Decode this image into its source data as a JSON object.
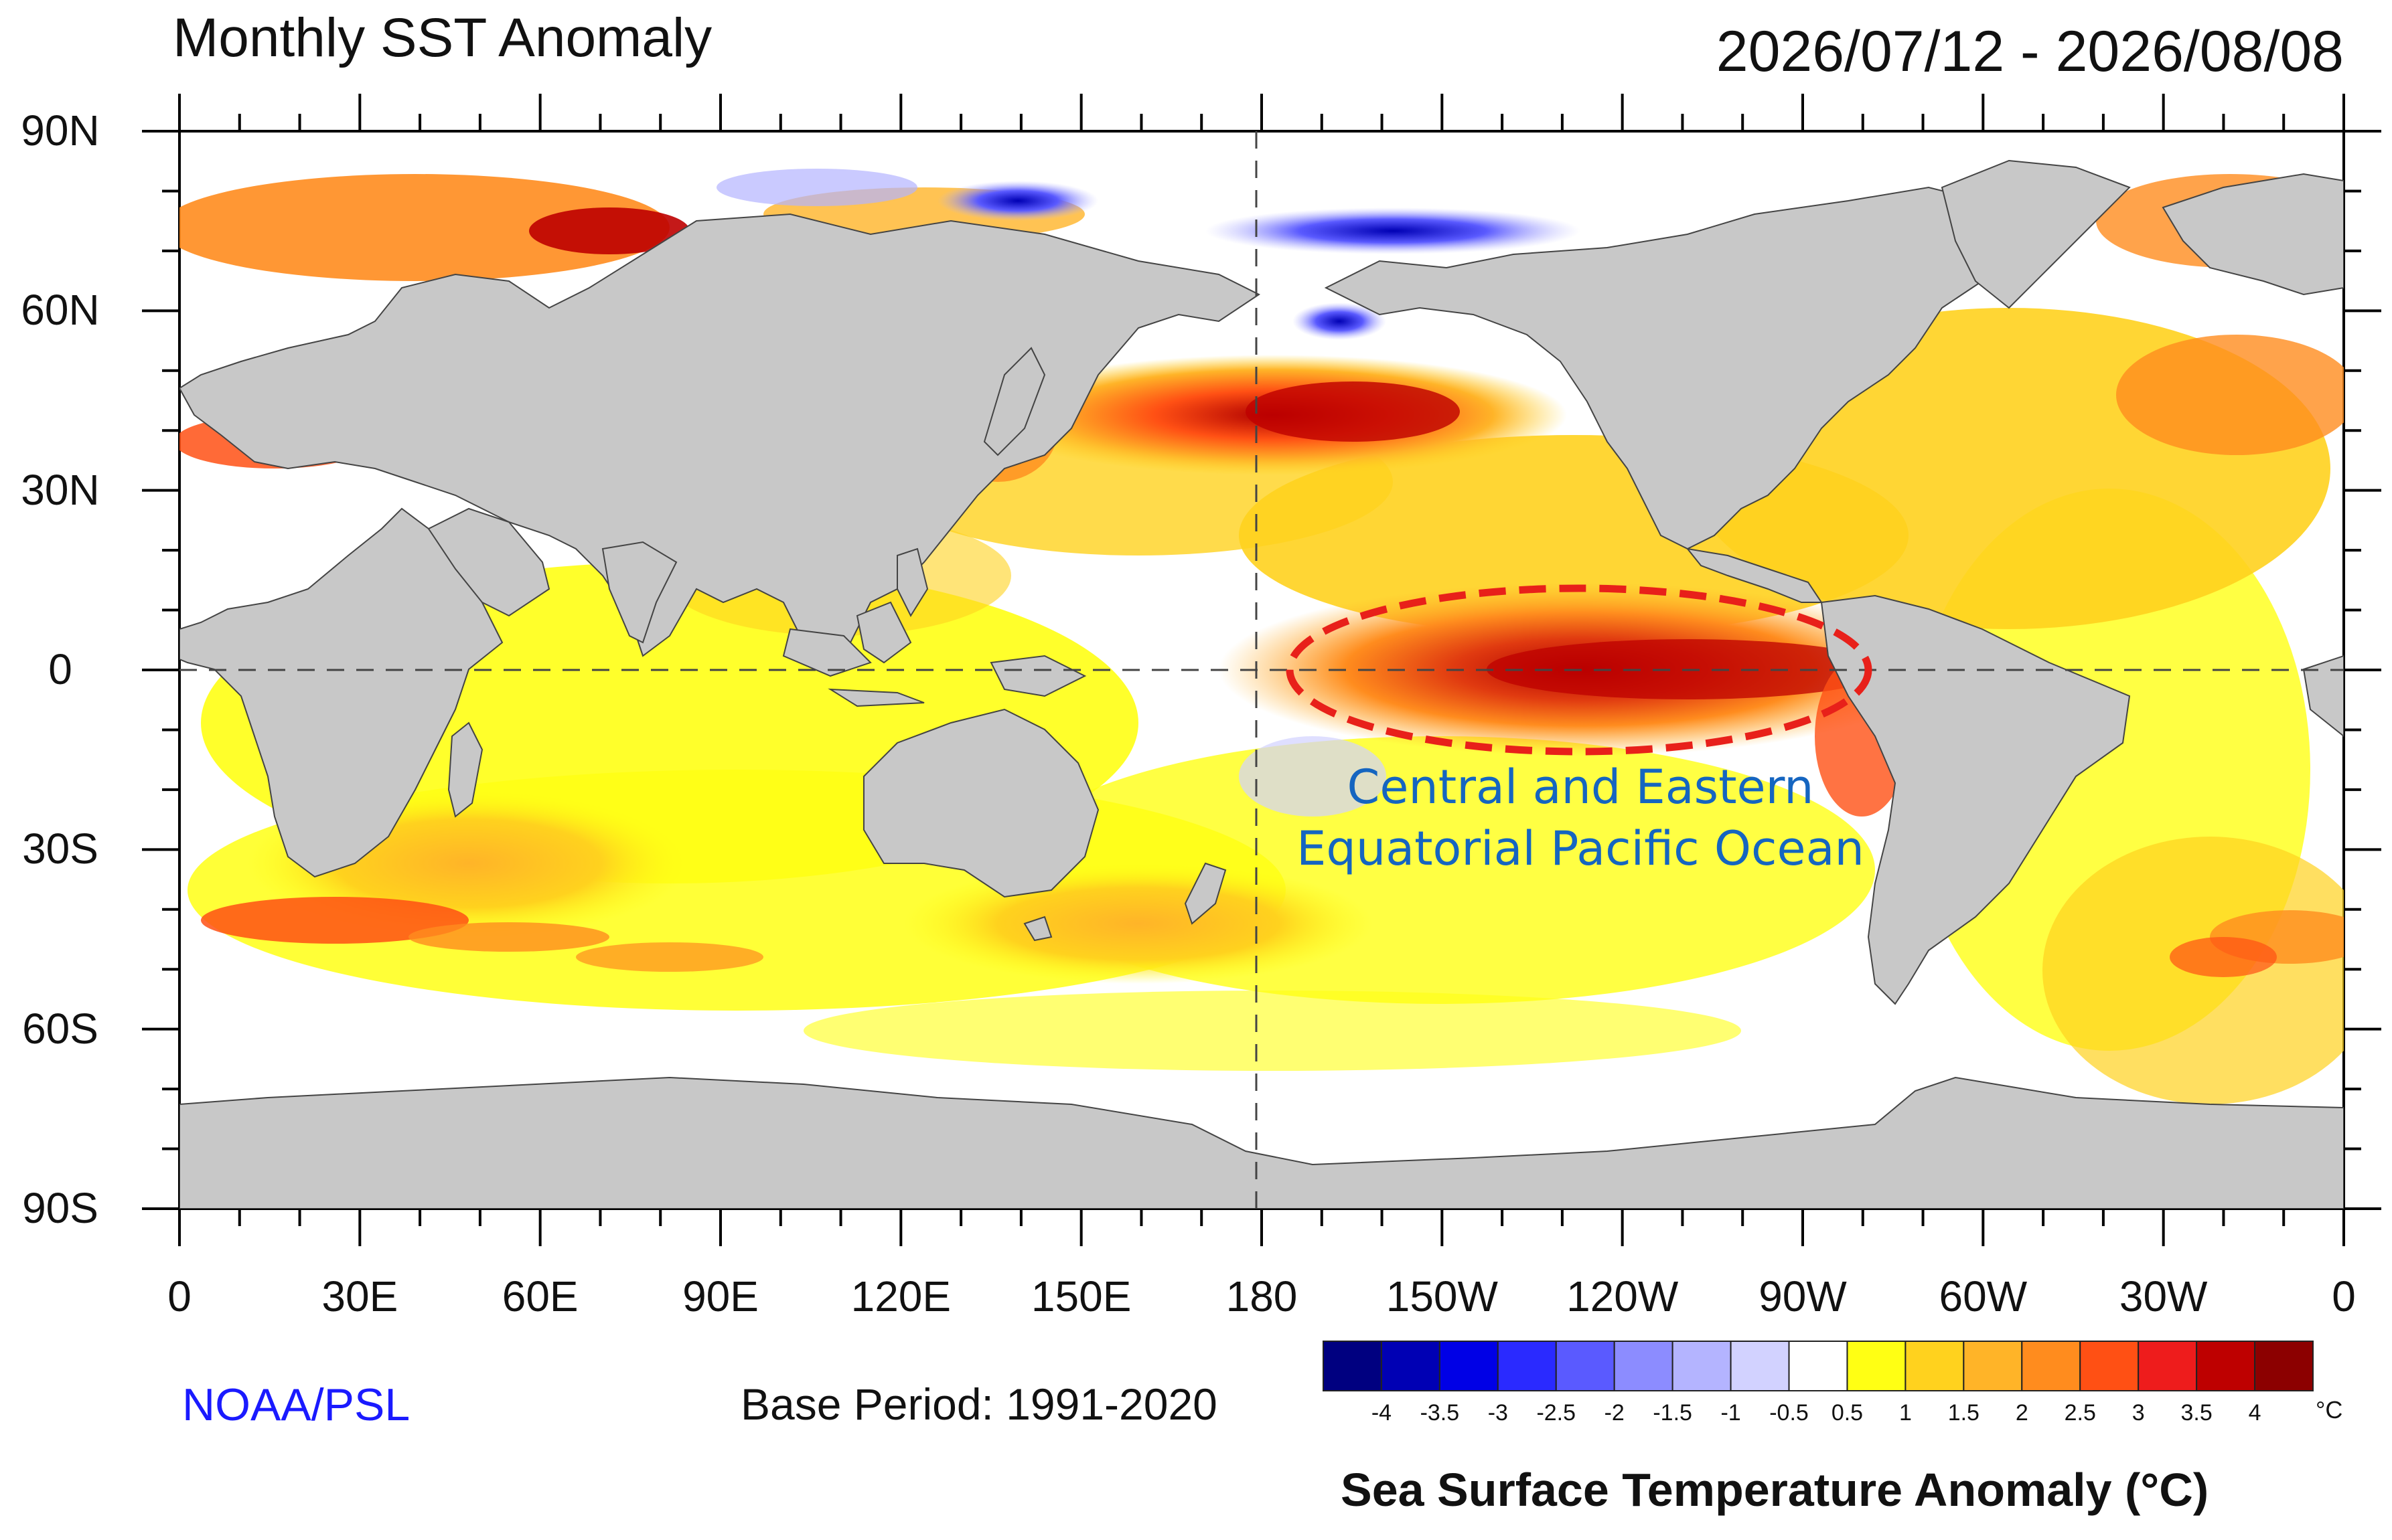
{
  "title": "Monthly SST Anomaly",
  "date_range": "2026/07/12 - 2026/08/08",
  "source": "NOAA/PSL",
  "base_period": "Base Period: 1991-2020",
  "annotation": {
    "label_line1": "Central and Eastern",
    "label_line2": "Equatorial Pacific Ocean"
  },
  "axes": {
    "lon_labels": [
      "0",
      "30E",
      "60E",
      "90E",
      "120E",
      "150E",
      "180",
      "150W",
      "120W",
      "90W",
      "60W",
      "30W",
      "0"
    ],
    "lat_labels": [
      "90N",
      "60N",
      "30N",
      "0",
      "30S",
      "60S",
      "90S"
    ]
  },
  "colorbar": {
    "title": "Sea Surface Temperature Anomaly (°C)",
    "unit": "°C",
    "tick_labels": [
      "-4",
      "-3.5",
      "-3",
      "-2.5",
      "-2",
      "-1.5",
      "-1",
      "-0.5",
      "0.5",
      "1",
      "1.5",
      "2",
      "2.5",
      "3",
      "3.5",
      "4"
    ],
    "colors": [
      "#000080",
      "#0000b4",
      "#0000e6",
      "#2a2aff",
      "#5a5aff",
      "#8c8cff",
      "#b4b4ff",
      "#d2d2ff",
      "#ffffff",
      "#ffff14",
      "#ffd21e",
      "#ffb428",
      "#ff8c1e",
      "#ff5014",
      "#ee1c1c",
      "#be0000",
      "#8c0000"
    ]
  },
  "colors": {
    "land": "#c8c8c8",
    "annotation_ellipse": "#e8201a",
    "annotation_text": "#1565c0"
  }
}
